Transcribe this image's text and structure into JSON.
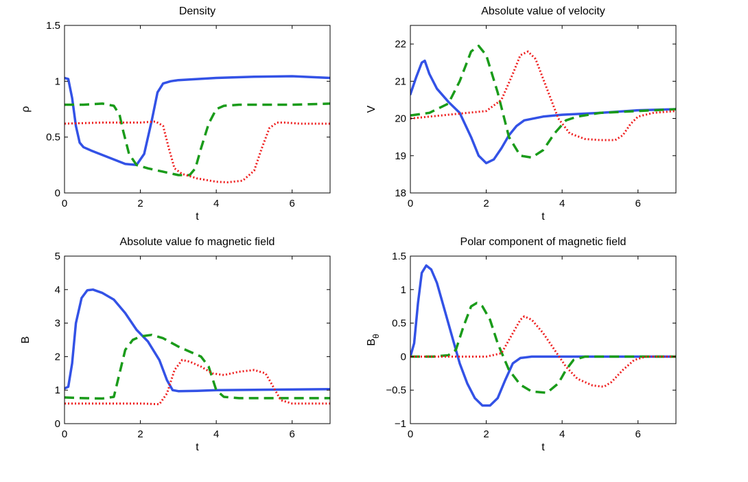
{
  "chart_data": [
    {
      "type": "line",
      "title": "Density",
      "xlabel": "t",
      "ylabel": "ρ",
      "ylabel_sub": "",
      "xlim": [
        0,
        7
      ],
      "ylim": [
        0,
        1.5
      ],
      "xticks": [
        0,
        2,
        4,
        6
      ],
      "yticks": [
        0,
        0.5,
        1,
        1.5
      ],
      "ytick_labels": [
        "0",
        "0.5",
        "1",
        "1.5"
      ],
      "series": [
        {
          "name": "solid",
          "color": "#3352e6",
          "style": "solid",
          "x": [
            0,
            0.1,
            0.2,
            0.3,
            0.4,
            0.5,
            0.7,
            1.0,
            1.3,
            1.6,
            1.9,
            2.1,
            2.3,
            2.45,
            2.6,
            2.8,
            3.0,
            4.0,
            5.0,
            6.0,
            7.0
          ],
          "y": [
            1.03,
            1.02,
            0.85,
            0.6,
            0.45,
            0.41,
            0.38,
            0.34,
            0.3,
            0.26,
            0.25,
            0.35,
            0.65,
            0.9,
            0.98,
            1.0,
            1.01,
            1.03,
            1.04,
            1.045,
            1.03
          ]
        },
        {
          "name": "dashed",
          "color": "#1a9b1a",
          "style": "dashed",
          "x": [
            0,
            0.5,
            1.0,
            1.3,
            1.45,
            1.55,
            1.7,
            1.9,
            2.2,
            2.6,
            3.0,
            3.3,
            3.45,
            3.6,
            3.8,
            4.0,
            4.2,
            4.6,
            5.0,
            6.0,
            7.0
          ],
          "y": [
            0.79,
            0.79,
            0.8,
            0.78,
            0.7,
            0.55,
            0.35,
            0.25,
            0.22,
            0.19,
            0.16,
            0.16,
            0.22,
            0.4,
            0.62,
            0.75,
            0.78,
            0.79,
            0.79,
            0.79,
            0.8
          ]
        },
        {
          "name": "dotted",
          "color": "#ee1c1c",
          "style": "dotted",
          "x": [
            0,
            1.0,
            2.0,
            2.4,
            2.6,
            2.75,
            2.9,
            3.1,
            3.5,
            4.0,
            4.3,
            4.7,
            5.0,
            5.2,
            5.4,
            5.6,
            5.8,
            6.2,
            7.0
          ],
          "y": [
            0.62,
            0.63,
            0.63,
            0.64,
            0.6,
            0.4,
            0.22,
            0.17,
            0.13,
            0.1,
            0.095,
            0.11,
            0.2,
            0.4,
            0.58,
            0.63,
            0.63,
            0.62,
            0.62
          ]
        }
      ]
    },
    {
      "type": "line",
      "title": "Absolute value of velocity",
      "xlabel": "t",
      "ylabel": "V",
      "ylabel_sub": "",
      "xlim": [
        0,
        7
      ],
      "ylim": [
        18,
        22.5
      ],
      "xticks": [
        0,
        2,
        4,
        6
      ],
      "yticks": [
        18,
        19,
        20,
        21,
        22
      ],
      "ytick_labels": [
        "18",
        "19",
        "20",
        "21",
        "22"
      ],
      "series": [
        {
          "name": "solid",
          "color": "#3352e6",
          "style": "solid",
          "x": [
            0,
            0.15,
            0.3,
            0.38,
            0.5,
            0.7,
            1.0,
            1.3,
            1.6,
            1.8,
            2.0,
            2.2,
            2.4,
            2.6,
            2.8,
            3.0,
            3.5,
            4.0,
            5.0,
            6.0,
            7.0
          ],
          "y": [
            20.65,
            21.1,
            21.5,
            21.55,
            21.2,
            20.8,
            20.45,
            20.15,
            19.5,
            19.0,
            18.8,
            18.9,
            19.2,
            19.55,
            19.8,
            19.95,
            20.05,
            20.1,
            20.15,
            20.22,
            20.25
          ]
        },
        {
          "name": "dashed",
          "color": "#1a9b1a",
          "style": "dashed",
          "x": [
            0,
            0.5,
            1.0,
            1.3,
            1.6,
            1.8,
            2.0,
            2.3,
            2.6,
            2.9,
            3.2,
            3.5,
            3.8,
            4.1,
            4.4,
            5.0,
            6.0,
            7.0
          ],
          "y": [
            20.08,
            20.15,
            20.4,
            21.0,
            21.8,
            21.95,
            21.7,
            20.7,
            19.5,
            19.0,
            18.95,
            19.15,
            19.6,
            19.95,
            20.05,
            20.15,
            20.2,
            20.25
          ]
        },
        {
          "name": "dotted",
          "color": "#ee1c1c",
          "style": "dotted",
          "x": [
            0,
            1.0,
            2.0,
            2.4,
            2.7,
            2.9,
            3.1,
            3.3,
            3.6,
            3.9,
            4.2,
            4.6,
            5.0,
            5.4,
            5.6,
            5.8,
            6.0,
            6.4,
            7.0
          ],
          "y": [
            20.0,
            20.1,
            20.2,
            20.5,
            21.2,
            21.7,
            21.8,
            21.6,
            20.8,
            20.0,
            19.6,
            19.45,
            19.42,
            19.42,
            19.55,
            19.85,
            20.05,
            20.15,
            20.2
          ]
        }
      ]
    },
    {
      "type": "line",
      "title": "Absolute value fo magnetic field",
      "xlabel": "t",
      "ylabel": "B",
      "ylabel_sub": "",
      "xlim": [
        0,
        7
      ],
      "ylim": [
        0,
        5
      ],
      "xticks": [
        0,
        2,
        4,
        6
      ],
      "yticks": [
        0,
        1,
        2,
        3,
        4,
        5
      ],
      "ytick_labels": [
        "0",
        "1",
        "2",
        "3",
        "4",
        "5"
      ],
      "series": [
        {
          "name": "solid",
          "color": "#3352e6",
          "style": "solid",
          "x": [
            0,
            0.1,
            0.2,
            0.3,
            0.45,
            0.6,
            0.75,
            1.0,
            1.3,
            1.6,
            1.9,
            2.2,
            2.5,
            2.7,
            2.85,
            3.0,
            3.5,
            4.0,
            5.0,
            6.0,
            7.0
          ],
          "y": [
            1.05,
            1.1,
            1.8,
            3.0,
            3.75,
            3.98,
            4.0,
            3.9,
            3.7,
            3.3,
            2.8,
            2.45,
            1.9,
            1.3,
            1.0,
            0.97,
            0.98,
            1.0,
            1.01,
            1.02,
            1.03
          ]
        },
        {
          "name": "dashed",
          "color": "#1a9b1a",
          "style": "dashed",
          "x": [
            0,
            0.5,
            1.0,
            1.3,
            1.45,
            1.6,
            1.8,
            2.0,
            2.3,
            2.6,
            3.0,
            3.3,
            3.6,
            3.8,
            4.0,
            4.2,
            4.6,
            5.0,
            6.0,
            7.0
          ],
          "y": [
            0.78,
            0.76,
            0.75,
            0.8,
            1.5,
            2.2,
            2.5,
            2.6,
            2.65,
            2.55,
            2.3,
            2.15,
            2.0,
            1.7,
            1.0,
            0.8,
            0.76,
            0.76,
            0.76,
            0.76
          ]
        },
        {
          "name": "dotted",
          "color": "#ee1c1c",
          "style": "dotted",
          "x": [
            0,
            1.0,
            2.0,
            2.5,
            2.7,
            2.9,
            3.1,
            3.3,
            3.6,
            3.9,
            4.2,
            4.6,
            5.0,
            5.3,
            5.5,
            5.7,
            6.0,
            7.0
          ],
          "y": [
            0.6,
            0.6,
            0.6,
            0.58,
            0.9,
            1.6,
            1.9,
            1.85,
            1.7,
            1.5,
            1.45,
            1.55,
            1.6,
            1.5,
            1.1,
            0.7,
            0.6,
            0.6
          ]
        }
      ]
    },
    {
      "type": "line",
      "title": "Polar component of magnetic field",
      "xlabel": "t",
      "ylabel": "B",
      "ylabel_sub": "θ",
      "xlim": [
        0,
        7
      ],
      "ylim": [
        -1,
        1.5
      ],
      "xticks": [
        0,
        2,
        4,
        6
      ],
      "yticks": [
        -1,
        -0.5,
        0,
        0.5,
        1,
        1.5
      ],
      "ytick_labels": [
        "−1",
        "−0.5",
        "0",
        "0.5",
        "1",
        "1.5"
      ],
      "series": [
        {
          "name": "solid",
          "color": "#3352e6",
          "style": "solid",
          "x": [
            0,
            0.1,
            0.2,
            0.3,
            0.42,
            0.55,
            0.7,
            0.9,
            1.1,
            1.3,
            1.5,
            1.7,
            1.9,
            2.1,
            2.3,
            2.5,
            2.7,
            2.9,
            3.2,
            3.5,
            4.0,
            5.0,
            6.0,
            7.0
          ],
          "y": [
            0.0,
            0.2,
            0.8,
            1.25,
            1.36,
            1.3,
            1.1,
            0.7,
            0.3,
            -0.1,
            -0.4,
            -0.62,
            -0.73,
            -0.73,
            -0.62,
            -0.35,
            -0.1,
            -0.02,
            0.0,
            0.0,
            0.0,
            0.0,
            0.0,
            0.0
          ]
        },
        {
          "name": "dashed",
          "color": "#1a9b1a",
          "style": "dashed",
          "x": [
            0,
            0.6,
            1.0,
            1.2,
            1.4,
            1.6,
            1.75,
            1.9,
            2.1,
            2.3,
            2.6,
            2.9,
            3.2,
            3.6,
            3.9,
            4.1,
            4.3,
            4.6,
            5.0,
            6.0,
            7.0
          ],
          "y": [
            0.0,
            0.0,
            0.02,
            0.1,
            0.45,
            0.75,
            0.8,
            0.75,
            0.55,
            0.2,
            -0.2,
            -0.42,
            -0.52,
            -0.54,
            -0.4,
            -0.2,
            -0.05,
            0.0,
            0.0,
            0.0,
            0.0
          ]
        },
        {
          "name": "dotted",
          "color": "#ee1c1c",
          "style": "dotted",
          "x": [
            0,
            1.0,
            2.0,
            2.4,
            2.7,
            2.9,
            3.0,
            3.2,
            3.5,
            3.8,
            4.1,
            4.4,
            4.8,
            5.1,
            5.3,
            5.6,
            5.9,
            6.2,
            7.0
          ],
          "y": [
            0.0,
            0.0,
            0.0,
            0.05,
            0.35,
            0.55,
            0.6,
            0.55,
            0.35,
            0.1,
            -0.15,
            -0.33,
            -0.43,
            -0.45,
            -0.38,
            -0.2,
            -0.05,
            0.0,
            0.0
          ]
        }
      ]
    }
  ]
}
